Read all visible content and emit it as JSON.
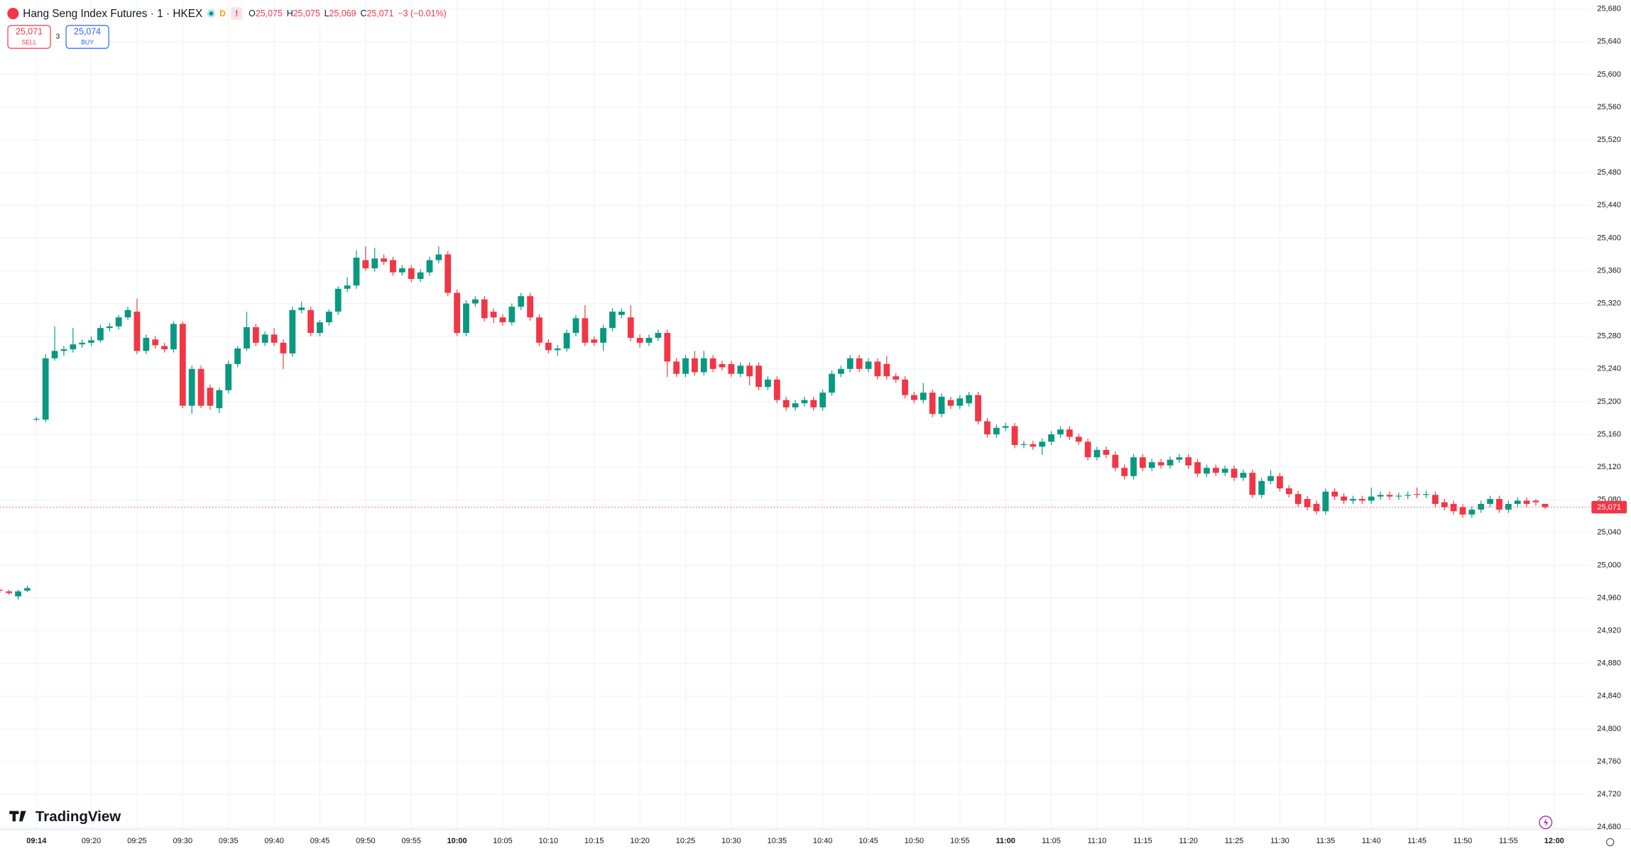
{
  "header": {
    "symbol": "Hang Seng Index Futures · 1 · HKEX",
    "badge": "D",
    "ohlc": [
      {
        "label": "O",
        "value": "25,075"
      },
      {
        "label": "H",
        "value": "25,075"
      },
      {
        "label": "L",
        "value": "25,069"
      },
      {
        "label": "C",
        "value": "25,071"
      }
    ],
    "change": "−3 (−0.01%)"
  },
  "trade": {
    "sell_price": "25,071",
    "sell_label": "SELL",
    "spread": "3",
    "buy_price": "25,074",
    "buy_label": "BUY"
  },
  "brand": "TradingView",
  "chart_data": {
    "type": "candlestick",
    "up_color": "#089981",
    "down_color": "#f23645",
    "grid": true,
    "ylim": [
      24678,
      25691
    ],
    "yticks": [
      {
        "value": 24680,
        "label": "24,680"
      },
      {
        "value": 24720,
        "label": "24,720"
      },
      {
        "value": 24760,
        "label": "24,760"
      },
      {
        "value": 24800,
        "label": "24,800"
      },
      {
        "value": 24840,
        "label": "24,840"
      },
      {
        "value": 24880,
        "label": "24,880"
      },
      {
        "value": 24920,
        "label": "24,920"
      },
      {
        "value": 24960,
        "label": "24,960"
      },
      {
        "value": 25000,
        "label": "25,000"
      },
      {
        "value": 25040,
        "label": "25,040"
      },
      {
        "value": 25080,
        "label": "25,080"
      },
      {
        "value": 25120,
        "label": "25,120"
      },
      {
        "value": 25160,
        "label": "25,160"
      },
      {
        "value": 25200,
        "label": "25,200"
      },
      {
        "value": 25240,
        "label": "25,240"
      },
      {
        "value": 25280,
        "label": "25,280"
      },
      {
        "value": 25320,
        "label": "25,320"
      },
      {
        "value": 25360,
        "label": "25,360"
      },
      {
        "value": 25400,
        "label": "25,400"
      },
      {
        "value": 25440,
        "label": "25,440"
      },
      {
        "value": 25480,
        "label": "25,480"
      },
      {
        "value": 25520,
        "label": "25,520"
      },
      {
        "value": 25560,
        "label": "25,560"
      },
      {
        "value": 25600,
        "label": "25,600"
      },
      {
        "value": 25640,
        "label": "25,640"
      },
      {
        "value": 25680,
        "label": "25,680"
      }
    ],
    "xticks": [
      "09:14",
      "09:20",
      "09:25",
      "09:30",
      "09:35",
      "09:40",
      "09:45",
      "09:50",
      "09:55",
      "10:00",
      "10:05",
      "10:10",
      "10:15",
      "10:20",
      "10:25",
      "10:30",
      "10:35",
      "10:40",
      "10:45",
      "10:50",
      "10:55",
      "11:00",
      "11:05",
      "11:10",
      "11:15",
      "11:20",
      "11:25",
      "11:30",
      "11:35",
      "11:40",
      "11:45",
      "11:50",
      "11:55",
      "12:00"
    ],
    "last_price": {
      "value": 25071,
      "label": "25,071"
    },
    "categories": [
      null,
      null,
      null,
      null,
      "09:14",
      "09:15",
      "09:16",
      "09:17",
      "09:18",
      "09:19",
      "09:20",
      "09:21",
      "09:22",
      "09:23",
      "09:24",
      "09:25",
      "09:26",
      "09:27",
      "09:28",
      "09:29",
      "09:30",
      "09:31",
      "09:32",
      "09:33",
      "09:34",
      "09:35",
      "09:36",
      "09:37",
      "09:38",
      "09:39",
      "09:40",
      "09:41",
      "09:42",
      "09:43",
      "09:44",
      "09:45",
      "09:46",
      "09:47",
      "09:48",
      "09:49",
      "09:50",
      "09:51",
      "09:52",
      "09:53",
      "09:54",
      "09:55",
      "09:56",
      "09:57",
      "09:58",
      "09:59",
      "10:00",
      "10:01",
      "10:02",
      "10:03",
      "10:04",
      "10:05",
      "10:06",
      "10:07",
      "10:08",
      "10:09",
      "10:10",
      "10:11",
      "10:12",
      "10:13",
      "10:14",
      "10:15",
      "10:16",
      "10:17",
      "10:18",
      "10:19",
      "10:20",
      "10:21",
      "10:22",
      "10:23",
      "10:24",
      "10:25",
      "10:26",
      "10:27",
      "10:28",
      "10:29",
      "10:30",
      "10:31",
      "10:32",
      "10:33",
      "10:34",
      "10:35",
      "10:36",
      "10:37",
      "10:38",
      "10:39",
      "10:40",
      "10:41",
      "10:42",
      "10:43",
      "10:44",
      "10:45",
      "10:46",
      "10:47",
      "10:48",
      "10:49",
      "10:50",
      "10:51",
      "10:52",
      "10:53",
      "10:54",
      "10:55",
      "10:56",
      "10:57",
      "10:58",
      "10:59",
      "11:00",
      "11:01",
      "11:02",
      "11:03",
      "11:04",
      "11:05",
      "11:06",
      "11:07",
      "11:08",
      "11:09",
      "11:10",
      "11:11",
      "11:12",
      "11:13",
      "11:14",
      "11:15",
      "11:16",
      "11:17",
      "11:18",
      "11:19",
      "11:20",
      "11:21",
      "11:22",
      "11:23",
      "11:24",
      "11:25",
      "11:26",
      "11:27",
      "11:28",
      "11:29",
      "11:30",
      "11:31",
      "11:32",
      "11:33",
      "11:34",
      "11:35",
      "11:36",
      "11:37",
      "11:38",
      "11:39",
      "11:40",
      "11:41",
      "11:42",
      "11:43",
      "11:44",
      "11:45",
      "11:46",
      "11:47",
      "11:48",
      "11:49",
      "11:50",
      "11:51",
      "11:52",
      "11:53",
      "11:54",
      "11:55",
      "11:56",
      "11:57",
      "11:58",
      "11:59"
    ],
    "candles": [
      [
        24970,
        24972,
        24966,
        24969
      ],
      [
        24968,
        24970,
        24964,
        24966
      ],
      [
        24962,
        24970,
        24958,
        24968
      ],
      [
        24969,
        24975,
        24967,
        24972
      ],
      [
        25178,
        25181,
        25176,
        25179
      ],
      [
        25178,
        25258,
        25175,
        25253
      ],
      [
        25253,
        25292,
        25250,
        25262
      ],
      [
        25262,
        25268,
        25256,
        25264
      ],
      [
        25264,
        25290,
        25260,
        25270
      ],
      [
        25270,
        25276,
        25266,
        25272
      ],
      [
        25272,
        25280,
        25268,
        25275
      ],
      [
        25275,
        25294,
        25272,
        25290
      ],
      [
        25290,
        25296,
        25286,
        25292
      ],
      [
        25292,
        25306,
        25288,
        25303
      ],
      [
        25303,
        25316,
        25300,
        25312
      ],
      [
        25310,
        25326,
        25258,
        25262
      ],
      [
        25262,
        25282,
        25258,
        25278
      ],
      [
        25276,
        25280,
        25265,
        25269
      ],
      [
        25268,
        25272,
        25260,
        25264
      ],
      [
        25264,
        25298,
        25260,
        25295
      ],
      [
        25295,
        25298,
        25192,
        25195
      ],
      [
        25195,
        25244,
        25185,
        25240
      ],
      [
        25240,
        25244,
        25192,
        25195
      ],
      [
        25217,
        25221,
        25190,
        25195
      ],
      [
        25192,
        25217,
        25186,
        25214
      ],
      [
        25214,
        25250,
        25210,
        25246
      ],
      [
        25246,
        25268,
        25242,
        25265
      ],
      [
        25265,
        25310,
        25262,
        25291
      ],
      [
        25291,
        25295,
        25268,
        25272
      ],
      [
        25272,
        25286,
        25268,
        25282
      ],
      [
        25282,
        25290,
        25268,
        25272
      ],
      [
        25272,
        25276,
        25240,
        25259
      ],
      [
        25259,
        25316,
        25255,
        25312
      ],
      [
        25312,
        25322,
        25308,
        25315
      ],
      [
        25312,
        25316,
        25280,
        25284
      ],
      [
        25284,
        25300,
        25280,
        25297
      ],
      [
        25297,
        25313,
        25293,
        25310
      ],
      [
        25310,
        25341,
        25306,
        25338
      ],
      [
        25338,
        25352,
        25334,
        25342
      ],
      [
        25342,
        25385,
        25338,
        25376
      ],
      [
        25373,
        25390,
        25360,
        25363
      ],
      [
        25363,
        25388,
        25359,
        25375
      ],
      [
        25375,
        25380,
        25367,
        25371
      ],
      [
        25373,
        25377,
        25354,
        25358
      ],
      [
        25358,
        25367,
        25354,
        25363
      ],
      [
        25363,
        25367,
        25346,
        25350
      ],
      [
        25350,
        25362,
        25346,
        25358
      ],
      [
        25358,
        25377,
        25354,
        25373
      ],
      [
        25373,
        25390,
        25369,
        25380
      ],
      [
        25380,
        25384,
        25329,
        25333
      ],
      [
        25333,
        25337,
        25280,
        25284
      ],
      [
        25284,
        25324,
        25280,
        25320
      ],
      [
        25320,
        25329,
        25316,
        25325
      ],
      [
        25325,
        25329,
        25298,
        25302
      ],
      [
        25310,
        25314,
        25296,
        25303
      ],
      [
        25303,
        25307,
        25293,
        25297
      ],
      [
        25297,
        25320,
        25293,
        25316
      ],
      [
        25316,
        25333,
        25312,
        25329
      ],
      [
        25329,
        25333,
        25299,
        25303
      ],
      [
        25303,
        25307,
        25268,
        25272
      ],
      [
        25272,
        25276,
        25259,
        25263
      ],
      [
        25263,
        25269,
        25256,
        25265
      ],
      [
        25265,
        25288,
        25261,
        25284
      ],
      [
        25284,
        25306,
        25280,
        25302
      ],
      [
        25302,
        25318,
        25268,
        25272
      ],
      [
        25276,
        25280,
        25268,
        25272
      ],
      [
        25272,
        25294,
        25262,
        25290
      ],
      [
        25290,
        25314,
        25286,
        25310
      ],
      [
        25306,
        25314,
        25302,
        25310
      ],
      [
        25303,
        25318,
        25274,
        25278
      ],
      [
        25278,
        25282,
        25266,
        25272
      ],
      [
        25272,
        25282,
        25268,
        25278
      ],
      [
        25278,
        25288,
        25274,
        25284
      ],
      [
        25284,
        25288,
        25230,
        25249
      ],
      [
        25249,
        25253,
        25230,
        25234
      ],
      [
        25234,
        25257,
        25230,
        25253
      ],
      [
        25253,
        25262,
        25232,
        25236
      ],
      [
        25236,
        25262,
        25232,
        25253
      ],
      [
        25253,
        25257,
        25236,
        25240
      ],
      [
        25246,
        25250,
        25238,
        25242
      ],
      [
        25246,
        25250,
        25230,
        25234
      ],
      [
        25234,
        25248,
        25230,
        25244
      ],
      [
        25244,
        25248,
        25220,
        25231
      ],
      [
        25244,
        25248,
        25214,
        25218
      ],
      [
        25218,
        25231,
        25214,
        25227
      ],
      [
        25227,
        25231,
        25198,
        25202
      ],
      [
        25202,
        25206,
        25189,
        25193
      ],
      [
        25193,
        25202,
        25189,
        25198
      ],
      [
        25198,
        25206,
        25194,
        25202
      ],
      [
        25202,
        25206,
        25189,
        25193
      ],
      [
        25193,
        25215,
        25189,
        25211
      ],
      [
        25211,
        25238,
        25207,
        25234
      ],
      [
        25234,
        25244,
        25230,
        25240
      ],
      [
        25240,
        25257,
        25236,
        25253
      ],
      [
        25253,
        25257,
        25236,
        25240
      ],
      [
        25240,
        25253,
        25236,
        25249
      ],
      [
        25249,
        25253,
        25227,
        25231
      ],
      [
        25246,
        25256,
        25227,
        25231
      ],
      [
        25231,
        25235,
        25223,
        25227
      ],
      [
        25227,
        25231,
        25204,
        25208
      ],
      [
        25208,
        25212,
        25198,
        25202
      ],
      [
        25202,
        25223,
        25198,
        25211
      ],
      [
        25211,
        25215,
        25181,
        25185
      ],
      [
        25185,
        25210,
        25181,
        25206
      ],
      [
        25202,
        25206,
        25191,
        25195
      ],
      [
        25195,
        25208,
        25191,
        25204
      ],
      [
        25198,
        25212,
        25194,
        25208
      ],
      [
        25208,
        25212,
        25172,
        25176
      ],
      [
        25176,
        25180,
        25156,
        25160
      ],
      [
        25160,
        25172,
        25156,
        25168
      ],
      [
        25168,
        25174,
        25164,
        25170
      ],
      [
        25170,
        25174,
        25143,
        25147
      ],
      [
        25147,
        25152,
        25143,
        25148
      ],
      [
        25148,
        25152,
        25141,
        25145
      ],
      [
        25145,
        25155,
        25135,
        25151
      ],
      [
        25151,
        25164,
        25147,
        25160
      ],
      [
        25160,
        25170,
        25156,
        25166
      ],
      [
        25166,
        25170,
        25153,
        25157
      ],
      [
        25157,
        25161,
        25147,
        25151
      ],
      [
        25151,
        25155,
        25128,
        25132
      ],
      [
        25132,
        25145,
        25128,
        25141
      ],
      [
        25141,
        25145,
        25131,
        25135
      ],
      [
        25135,
        25139,
        25115,
        25119
      ],
      [
        25119,
        25123,
        25105,
        25109
      ],
      [
        25109,
        25136,
        25105,
        25132
      ],
      [
        25132,
        25136,
        25115,
        25119
      ],
      [
        25119,
        25130,
        25115,
        25126
      ],
      [
        25126,
        25130,
        25118,
        25122
      ],
      [
        25122,
        25133,
        25118,
        25129
      ],
      [
        25129,
        25136,
        25125,
        25132
      ],
      [
        25132,
        25136,
        25118,
        25122
      ],
      [
        25126,
        25130,
        25108,
        25112
      ],
      [
        25112,
        25123,
        25108,
        25119
      ],
      [
        25119,
        25123,
        25109,
        25113
      ],
      [
        25113,
        25122,
        25109,
        25118
      ],
      [
        25118,
        25122,
        25103,
        25107
      ],
      [
        25107,
        25117,
        25103,
        25113
      ],
      [
        25113,
        25117,
        25082,
        25086
      ],
      [
        25086,
        25107,
        25082,
        25103
      ],
      [
        25103,
        25116,
        25099,
        25109
      ],
      [
        25109,
        25113,
        25090,
        25094
      ],
      [
        25094,
        25098,
        25083,
        25087
      ],
      [
        25087,
        25091,
        25071,
        25075
      ],
      [
        25081,
        25085,
        25067,
        25071
      ],
      [
        25075,
        25079,
        25062,
        25066
      ],
      [
        25066,
        25094,
        25062,
        25090
      ],
      [
        25090,
        25094,
        25080,
        25084
      ],
      [
        25084,
        25088,
        25075,
        25079
      ],
      [
        25079,
        25085,
        25075,
        25081
      ],
      [
        25081,
        25085,
        25075,
        25079
      ],
      [
        25079,
        25095,
        25075,
        25084
      ],
      [
        25084,
        25090,
        25080,
        25086
      ],
      [
        25086,
        25090,
        25080,
        25084
      ],
      [
        25084,
        25089,
        25080,
        25085
      ],
      [
        25085,
        25090,
        25081,
        25086
      ],
      [
        25087,
        25095,
        25082,
        25086
      ],
      [
        25086,
        25091,
        25082,
        25087
      ],
      [
        25086,
        25090,
        25071,
        25075
      ],
      [
        25077,
        25081,
        25067,
        25071
      ],
      [
        25075,
        25079,
        25062,
        25066
      ],
      [
        25071,
        25075,
        25058,
        25062
      ],
      [
        25062,
        25072,
        25058,
        25068
      ],
      [
        25068,
        25079,
        25064,
        25075
      ],
      [
        25075,
        25085,
        25071,
        25081
      ],
      [
        25081,
        25085,
        25064,
        25068
      ],
      [
        25068,
        25079,
        25064,
        25075
      ],
      [
        25075,
        25083,
        25071,
        25079
      ],
      [
        25079,
        25083,
        25071,
        25075
      ],
      [
        25079,
        25081,
        25073,
        25077
      ],
      [
        25075,
        25075,
        25069,
        25071
      ]
    ]
  }
}
